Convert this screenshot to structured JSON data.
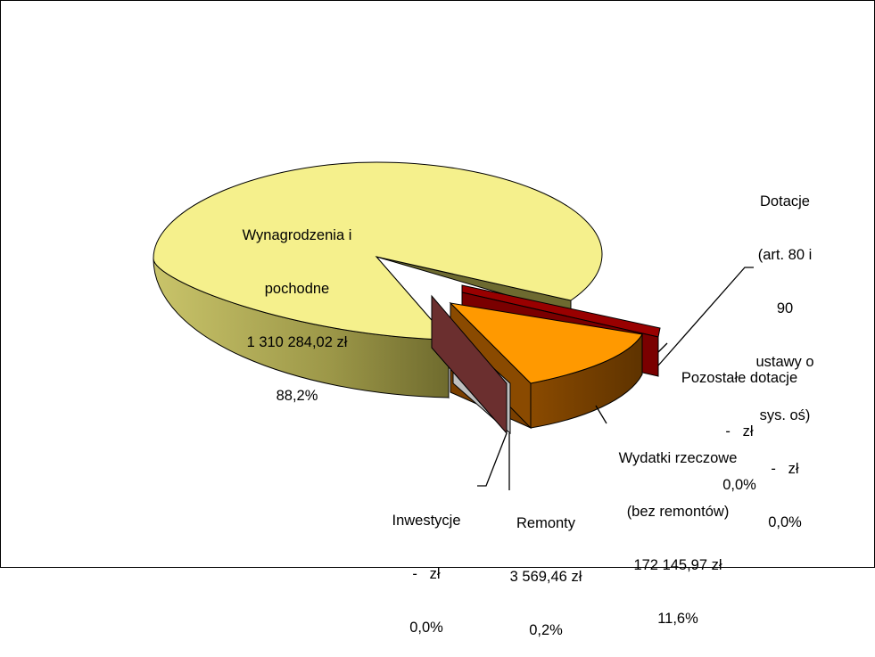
{
  "chart_data": {
    "type": "pie",
    "style": "3d-exploded",
    "slices": [
      {
        "name": "Wynagrodzenia i pochodne",
        "name_lines": [
          "Wynagrodzenia i",
          "pochodne"
        ],
        "value_text": "1 310 284,02 zł",
        "value": 1310284.02,
        "percent": "88,2%",
        "color": "#f5f08c"
      },
      {
        "name": "Dotacje (art. 80 i 90 ustawy o sys. oś)",
        "name_lines": [
          "Dotacje",
          "(art. 80 i",
          "90",
          "ustawy o",
          "sys. oś)"
        ],
        "value_text": "-   zł",
        "value": 0,
        "percent": "0,0%",
        "color": "#990000"
      },
      {
        "name": "Pozostałe dotacje",
        "name_lines": [
          "Pozostałe dotacje"
        ],
        "value_text": "-   zł",
        "value": 0,
        "percent": "0,0%",
        "color": "#cc0000"
      },
      {
        "name": "Wydatki rzeczowe (bez remontów)",
        "name_lines": [
          "Wydatki rzeczowe",
          "(bez remontów)"
        ],
        "value_text": "172 145,97 zł",
        "value": 172145.97,
        "percent": "11,6%",
        "color": "#ff9900"
      },
      {
        "name": "Remonty",
        "name_lines": [
          "Remonty"
        ],
        "value_text": "3 569,46 zł",
        "value": 3569.46,
        "percent": "0,2%",
        "color": "#bfbfbf"
      },
      {
        "name": "Inwestycje",
        "name_lines": [
          "Inwestycje"
        ],
        "value_text": "-   zł",
        "value": 0,
        "percent": "0,0%",
        "color": "#8b3a3a"
      }
    ]
  }
}
